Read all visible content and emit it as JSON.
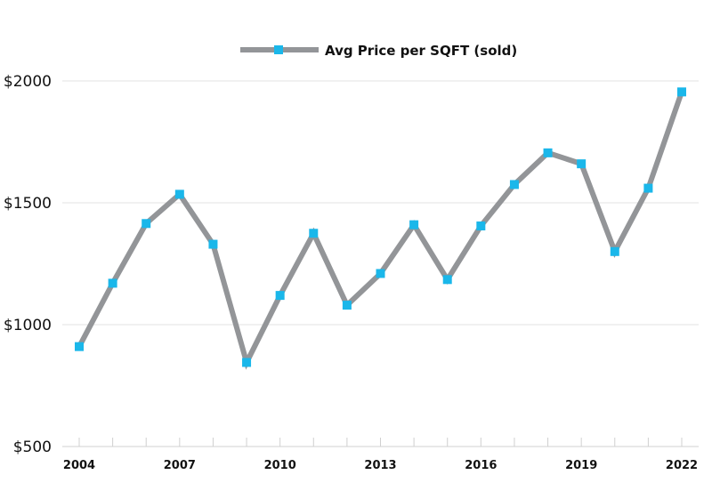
{
  "chart_data": {
    "type": "line",
    "title": "",
    "xlabel": "",
    "ylabel": "",
    "legend": {
      "position": "top-center",
      "entries": [
        "Avg Price per SQFT (sold)"
      ]
    },
    "x": [
      2004,
      2005,
      2006,
      2007,
      2008,
      2009,
      2010,
      2011,
      2012,
      2013,
      2014,
      2015,
      2016,
      2017,
      2018,
      2019,
      2020,
      2021,
      2022
    ],
    "series": [
      {
        "name": "Avg Price per SQFT (sold)",
        "values": [
          910,
          1170,
          1415,
          1535,
          1330,
          845,
          1120,
          1375,
          1080,
          1210,
          1410,
          1185,
          1405,
          1575,
          1705,
          1660,
          1300,
          1560,
          1955
        ],
        "line_color": "#939598",
        "marker_color": "#1ab7ea"
      }
    ],
    "ylim": [
      500,
      2000
    ],
    "yticks": [
      500,
      1000,
      1500,
      2000
    ],
    "ytick_labels": [
      "$500",
      "$1000",
      "$1500",
      "$2000"
    ],
    "xticks_labeled": [
      2004,
      2007,
      2010,
      2013,
      2016,
      2019,
      2022
    ],
    "xtick_labels": [
      "2004",
      "2007",
      "2010",
      "2013",
      "2016",
      "2019",
      "2022"
    ],
    "grid": "horizontal",
    "grid_color": "#e3e3e3"
  }
}
